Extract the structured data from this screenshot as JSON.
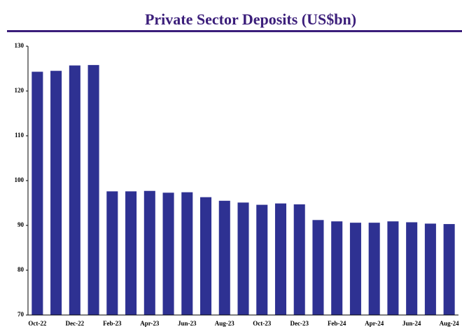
{
  "chart_data": {
    "type": "bar",
    "title": "Private Sector Deposits (US$bn)",
    "categories": [
      "Oct-22",
      null,
      "Dec-22",
      null,
      "Feb-23",
      null,
      "Apr-23",
      null,
      "Jun-23",
      null,
      "Aug-23",
      null,
      "Oct-23",
      null,
      "Dec-23",
      null,
      "Feb-24",
      null,
      "Apr-24",
      null,
      "Jun-24",
      null,
      "Aug-24"
    ],
    "values": [
      124.3,
      124.5,
      125.7,
      125.8,
      97.6,
      97.6,
      97.7,
      97.3,
      97.4,
      96.3,
      95.5,
      95.1,
      94.6,
      94.9,
      94.7,
      91.2,
      90.9,
      90.6,
      90.6,
      90.9,
      90.7,
      90.4,
      90.3
    ],
    "color": "#2e3192",
    "ylim": [
      70,
      130
    ],
    "yticks": [
      70,
      80,
      90,
      100,
      110,
      120,
      130
    ]
  }
}
